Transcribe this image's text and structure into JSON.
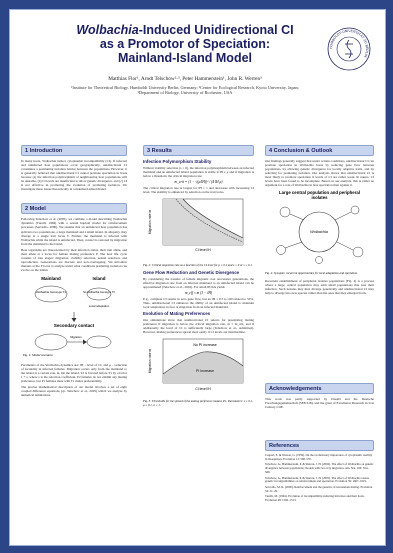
{
  "header": {
    "title_italic": "Wolbachia",
    "title_line1": "-Induced Unidirectional CI",
    "title_line2": "as a Promotor of Speciation:",
    "title_line3": "Mainland-Island Model",
    "authors": "Matthias Flor¹, Arndt Telschow²·³, Peter Hammerstein¹, John R. Werren³",
    "affiliations": "¹Institute for Theoretical Biology, Humboldt University Berlin, Germany; ²Center for Ecological Research, Kyoto University, Japan; ³Department of Biology, University of Rochester, USA",
    "logo_text": "HUMBOLDT-UNIVERSITÄT ZU BERLIN"
  },
  "introduction": {
    "heading": "1 Introduction",
    "text": "In many hosts, Wolbachia induce cytoplasmic incompatibility (CI). If infected and uninfected host populations occur geographically, unidirectional CI constitutes a postmating isolation barrier between the populations. However, it is generally believed that unidirectional CI cannot promote speciation in hosts because (a) the infection polymorphism of neighbouring host populations will be unstable, (b) CI levels are insufficient to allow genetic divergence, and (c) CI is not effective in promoting the evolution of premating isolation. We investigate these issues theoretically in a mainland-island model."
  },
  "model": {
    "heading": "2 Model",
    "paragraphs": [
      "Following Telschow et al. (2005), we combine a model describing Wolbachia dynamics (Turelli, 1994) with a sexual haploid model for reinforcement processes (Servedio, 2000). We assume that an uninfected host population has split into two populations, a large mainland and a small island. In allopatry, they diverge at a single trait locus T. Further, the mainland is infected with Wolbachia while the island is uninfected. Then, contact is restored by migration from the mainland to the island.",
      "Host organisms are characterized by their infection status, their trait allele, and their allele at a locus for female mating preference P. The host life cycle consists of four stages: migration, viability selection, sexual selection, and reproduction. Generations are discrete and non-overlapping. We introduce mutants at the P locus to analyze under what conditions premating isolation can evolve on the island.",
      "Parameters of the Wolbachia dynamics are: lH – level of CI, and μ – reduction of fecundity in infected females. Migration occurs only from the mainland to the island at a certain rate, m. On the island, T2 is favored before T1 by a factor 1 + s, where s is the selection coefficient. P2 females do not exhibit any mating preference, but P1 females mate with T1 males preferentially.",
      "The precise mathematical description of our model involves a set of eight coupled difference equations (cp. Telschow et al., 2005) which we analyze by numerical simulations."
    ],
    "figure": {
      "mainland": "Mainland",
      "island": "Island",
      "genotype_infected": "Wolbachia Genotype T1",
      "genotype_uninfected": "No Wolbachia Genotype T2",
      "local_adaptation": "Local adaptation",
      "contact": "Secondary contact",
      "migration": "Migration",
      "caption": "Fig. 1: Model scenario."
    }
  },
  "results": {
    "heading": "3 Results",
    "sub1": "Infection Polymorphism Stability",
    "p1": "Without viability selection (s = 0), the infection polymorphism between an infected mainland and an uninfected island population is stable if lH ≥ μ and if migration is below a threshold, the critical migration rate:",
    "formula1": "m_crit = (1 − √(μ/lH))² / (4 lH μ)",
    "p2": "The critical migration rate is largest for lH = 1 and decreases with increasing CI level. The stability is enhanced by selection on the trait locus.",
    "fig2": {
      "ylabel": "Migration rate m",
      "xlabel": "CI level lH",
      "caption": "Fig. 2: Critical migration rate as a function of the CI level for μ = 0.1 and s = 0 or s = 0.1."
    },
    "sub2": "Gene Flow Reduction and Genetic Divergence",
    "p3": "By considering the transfer of female migrants over successive generations, the effective migration rate from an infected mainland to an uninfected island can be approximated (Telschow et al., 2002). For small lH this yields",
    "formula2": "m_eff ≈ m (1 − lH)",
    "p4": "E.g., complete CI results in zero gene flow, but an lH = 0.5 is still related to 50%. Thus, unidirectional CI enhances the ability of an uninfected island to maintain local adaptations in face of migration from an infected mainland.",
    "sub3": "Evolution of Mating Preferences",
    "p5": "Our simulations show that unidirectional CI selects for preexisting mating preference if migration is below the critical migration rate, m < m_crit, and if additionally the level of CI is sufficiently large (Telschow et al., submitted). However, mating preferences spread most easily if CI levels are intermediate.",
    "fig3": {
      "region_none": "No PI increase",
      "region_increase": "PI increase",
      "ylabel": "Migration rate m",
      "xlabel": "CI level lH",
      "caption": "Fig. 3: Thresholds for the spread of the mating preference mutant, P1. Parameters: s = 0.1, μ = 0.1, α = 1."
    }
  },
  "conclusion": {
    "heading": "4 Conclusion & Outlook",
    "p1": "Our findings generally suggest that under certain conditions, unidirectional CI can promote speciation in Wolbachia hosts by reducing gene flow between populations, by allowing genetic divergence for locally adaptive traits, and by selecting for premating isolation. Our analysis shows that unidirectional CI is most likely to promote speciation if levels of CI are rather weak. In nature, CI levels have been found to be incomplete. Based on our analysis, this is rather an argument for a role of Wolbachia in host speciation than against it.",
    "fig4": {
      "title": "Large central population and peripheral isolates",
      "label": "Wolbachia",
      "caption": "Fig. 4: Synopsis: recurrent opportunities for local adaptation and speciation."
    },
    "p2": "Recurrent establishment of peripheral isolates populations (Fig. 4) is a process where a large, central population may emit small populations that lose their infection. Such isolates may then diverge genetically and unidirectional CI may help to diverge into new species rather than the ones that they emerged from."
  },
  "acknowledgements": {
    "heading": "Acknowledgements",
    "text": "This work was partly supported by DAAD and the Deutsche Forschungsgemeinschaft (SFB 618), and the grant of Excellence Research in 21st Century COE."
  },
  "references": {
    "heading": "References",
    "items": [
      "Caspari, E. & Watson, G. (1959). On the evolutionary importance of cytoplasmic sterility in mosquitoes. Evolution 13: 568–570.",
      "Telschow, A., Hammerstein, P. & Werren, J. H. (2002). The effect of Wolbachia on genetic divergence between populations: models with two-way migration. Am. Nat. 160: S54–S66.",
      "Telschow, A., Hammerstein, P. & Werren, J. H. (2005). The effect of Wolbachia versus genetic incompatibilities on reinforcement and speciation. Evolution 59: 1607–1619.",
      "Servedio, M. R. (2000). Reinforcement and the genetics of nonrandom mating. Evolution 54: 21–29.",
      "Turelli, M. (1994). Evolution of incompatibility-inducing microbes and their hosts. Evolution 48: 1500–1513."
    ]
  }
}
